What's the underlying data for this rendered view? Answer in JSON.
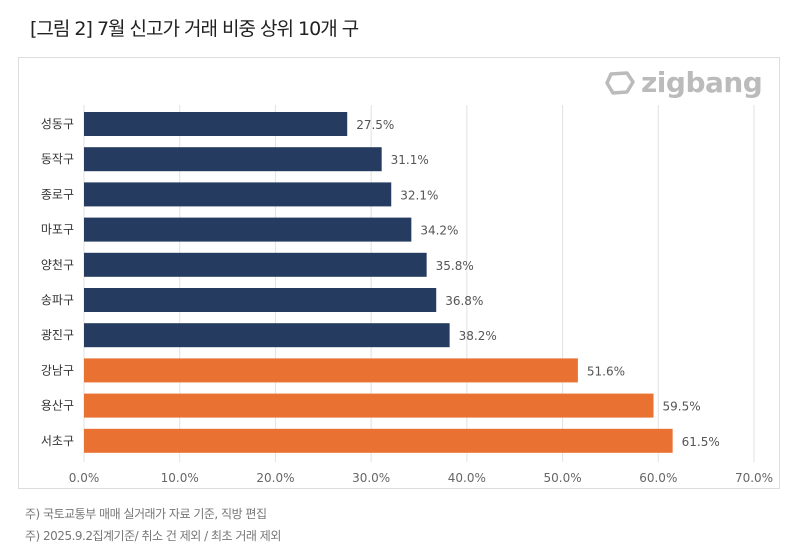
{
  "title": "[그림 2] 7월 신고가 거래 비중 상위 10개 구",
  "logo": {
    "text": "zigbang",
    "icon": "zigbang-logo-icon"
  },
  "notes": [
    "주) 국토교통부 매매 실거래가 자료 기준, 직방 편집",
    "주) 2025.9.2집계기준/ 취소 건 제외  / 최초 거래 제외"
  ],
  "colors": {
    "default": "#253b5f",
    "highlight": "#e97232"
  },
  "chart_data": {
    "type": "bar",
    "orientation": "horizontal",
    "categories": [
      "성동구",
      "동작구",
      "종로구",
      "마포구",
      "양천구",
      "송파구",
      "광진구",
      "강남구",
      "용산구",
      "서초구"
    ],
    "values": [
      27.5,
      31.1,
      32.1,
      34.2,
      35.8,
      36.8,
      38.2,
      51.6,
      59.5,
      61.5
    ],
    "data_labels": [
      "27.5%",
      "31.1%",
      "32.1%",
      "34.2%",
      "35.8%",
      "36.8%",
      "38.2%",
      "51.6%",
      "59.5%",
      "61.5%"
    ],
    "highlighted": [
      "강남구",
      "용산구",
      "서초구"
    ],
    "xlim": [
      0,
      70
    ],
    "x_ticks": [
      "0.0%",
      "10.0%",
      "20.0%",
      "30.0%",
      "40.0%",
      "50.0%",
      "60.0%",
      "70.0%"
    ],
    "grid": "vertical",
    "legend": "none"
  }
}
